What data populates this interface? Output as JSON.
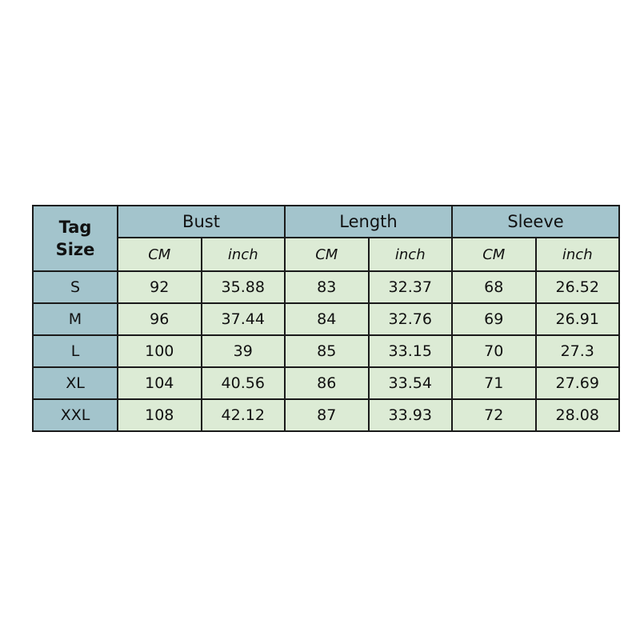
{
  "colors": {
    "header": "#a3c4cc",
    "cell": "#dcebd5",
    "border": "#1a1a1a"
  },
  "header": {
    "tag_line1": "Tag",
    "tag_line2": "Size",
    "groups": [
      "Bust",
      "Length",
      "Sleeve"
    ],
    "units": [
      "CM",
      "inch",
      "CM",
      "inch",
      "CM",
      "inch"
    ]
  },
  "rows": [
    {
      "size": "S",
      "values": [
        "92",
        "35.88",
        "83",
        "32.37",
        "68",
        "26.52"
      ]
    },
    {
      "size": "M",
      "values": [
        "96",
        "37.44",
        "84",
        "32.76",
        "69",
        "26.91"
      ]
    },
    {
      "size": "L",
      "values": [
        "100",
        "39",
        "85",
        "33.15",
        "70",
        "27.3"
      ]
    },
    {
      "size": "XL",
      "values": [
        "104",
        "40.56",
        "86",
        "33.54",
        "71",
        "27.69"
      ]
    },
    {
      "size": "XXL",
      "values": [
        "108",
        "42.12",
        "87",
        "33.93",
        "72",
        "28.08"
      ]
    }
  ]
}
